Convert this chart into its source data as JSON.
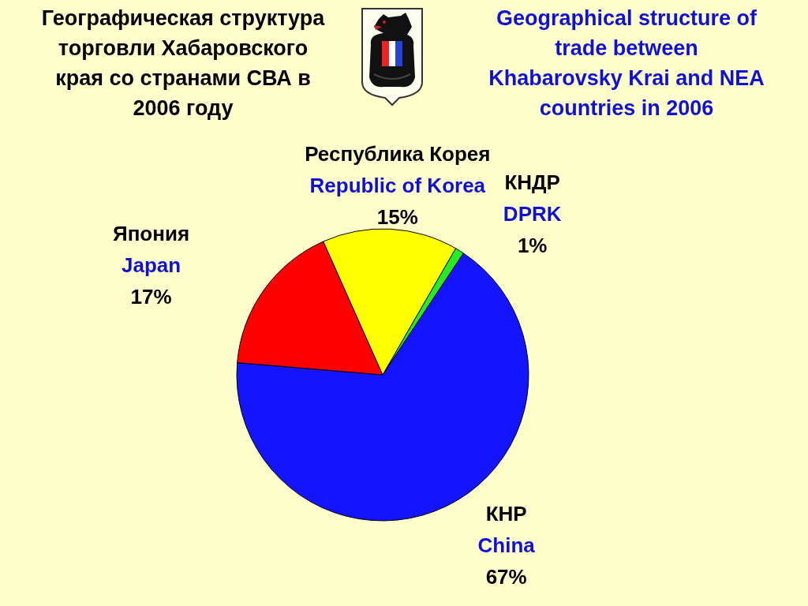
{
  "chart_data": {
    "type": "pie",
    "title": "Географическая структура\nторговли Хабаровского\nкрая со странами СВА в\n2006 году",
    "subtitle": "Geographical structure of\ntrade between\nKhabarovsky Krai and NEA\ncountries in 2006",
    "categories": [
      "КНДР\nDPRK",
      "КНР\nChina",
      "Япония\nJapan",
      "Республика Корея\nRepublic of Korea"
    ],
    "values": [
      1,
      67,
      17,
      15
    ],
    "colors": [
      "#22ee22",
      "#1414ff",
      "#ff0000",
      "#ffff00"
    ],
    "value_labels": [
      "1%",
      "67%",
      "17%",
      "15%"
    ]
  }
}
